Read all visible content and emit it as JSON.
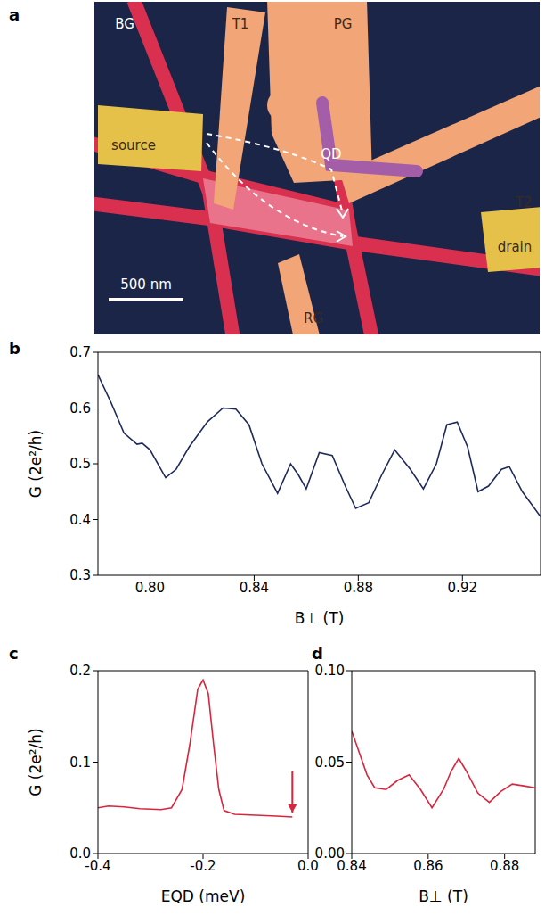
{
  "diagram": {
    "panel": "a",
    "labels": [
      "BG",
      "T1",
      "PG",
      "QD",
      "T2",
      "source",
      "drain",
      "RG"
    ],
    "scale_bar": "500 nm"
  },
  "chart_data": [
    {
      "panel": "b",
      "type": "line",
      "xlabel": "B⊥ (T)",
      "ylabel": "G (2e²/h)",
      "color": "#1f2a5c",
      "x": [
        0.78,
        0.785,
        0.79,
        0.795,
        0.797,
        0.8,
        0.806,
        0.81,
        0.815,
        0.822,
        0.828,
        0.833,
        0.838,
        0.843,
        0.849,
        0.854,
        0.857,
        0.86,
        0.865,
        0.87,
        0.875,
        0.879,
        0.884,
        0.889,
        0.894,
        0.9,
        0.905,
        0.91,
        0.914,
        0.918,
        0.922,
        0.926,
        0.93,
        0.935,
        0.938,
        0.943,
        0.95
      ],
      "values": [
        0.66,
        0.61,
        0.555,
        0.535,
        0.537,
        0.525,
        0.475,
        0.49,
        0.53,
        0.575,
        0.6,
        0.598,
        0.57,
        0.5,
        0.447,
        0.5,
        0.48,
        0.455,
        0.52,
        0.515,
        0.46,
        0.42,
        0.43,
        0.48,
        0.525,
        0.49,
        0.455,
        0.5,
        0.57,
        0.575,
        0.53,
        0.45,
        0.46,
        0.49,
        0.495,
        0.45,
        0.405
      ],
      "xlim": [
        0.78,
        0.95
      ],
      "xticks": [
        {
          "value": 0.8,
          "label": "0.80"
        },
        0.84,
        0.88,
        0.92
      ],
      "ylim": [
        0.3,
        0.7
      ],
      "yticks": [
        0.3,
        0.4,
        0.5,
        0.6,
        0.7
      ]
    },
    {
      "panel": "c",
      "type": "line",
      "xlabel": "EQD (meV)",
      "ylabel": "G (2e²/h)",
      "color": "#d7263d",
      "x": [
        -0.4,
        -0.38,
        -0.35,
        -0.32,
        -0.28,
        -0.26,
        -0.24,
        -0.225,
        -0.21,
        -0.2,
        -0.19,
        -0.18,
        -0.17,
        -0.16,
        -0.14,
        -0.1,
        -0.06,
        -0.03
      ],
      "values": [
        0.05,
        0.052,
        0.051,
        0.049,
        0.048,
        0.05,
        0.07,
        0.12,
        0.18,
        0.19,
        0.175,
        0.12,
        0.07,
        0.047,
        0.043,
        0.042,
        0.041,
        0.04
      ],
      "arrow": {
        "x": -0.03,
        "y": [
          0.09,
          0.045
        ]
      },
      "xlim": [
        -0.4,
        0
      ],
      "xticks": [
        -0.4,
        -0.2,
        {
          "value": 0,
          "label": "0.0"
        }
      ],
      "ylim": [
        0,
        0.2
      ],
      "yticks": [
        {
          "value": 0,
          "label": "0.0"
        },
        0.1,
        0.2
      ]
    },
    {
      "panel": "d",
      "type": "line",
      "xlabel": "B⊥ (T)",
      "color": "#d7263d",
      "x": [
        0.84,
        0.842,
        0.844,
        0.846,
        0.849,
        0.852,
        0.855,
        0.858,
        0.861,
        0.864,
        0.866,
        0.868,
        0.87,
        0.873,
        0.876,
        0.879,
        0.882,
        0.885,
        0.888
      ],
      "values": [
        0.067,
        0.055,
        0.043,
        0.036,
        0.035,
        0.04,
        0.043,
        0.035,
        0.025,
        0.035,
        0.045,
        0.052,
        0.045,
        0.033,
        0.028,
        0.034,
        0.038,
        0.037,
        0.036
      ],
      "xlim": [
        0.84,
        0.888
      ],
      "xticks": [
        0.84,
        0.86,
        0.88
      ],
      "ylim": [
        0,
        0.1
      ],
      "yticks": [
        {
          "value": 0,
          "label": "0.00"
        },
        0.05,
        {
          "value": 0.1,
          "label": "0.10"
        }
      ]
    }
  ]
}
